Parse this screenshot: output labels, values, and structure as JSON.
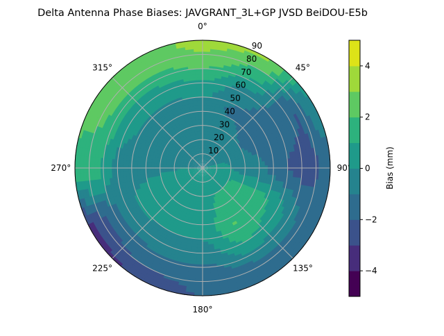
{
  "chart_data": {
    "type": "heatmap",
    "subtype": "polar-contour",
    "title": "Delta Antenna Phase Biases: JAVGRANT_3L+GP  JVSD BeiDOU-E5b",
    "theta_direction": "clockwise",
    "theta_zero": "top",
    "theta_tick_labels": [
      "0°",
      "45°",
      "90°",
      "135°",
      "180°",
      "225°",
      "270°",
      "315°"
    ],
    "theta_ticks": [
      0,
      45,
      90,
      135,
      180,
      225,
      270,
      315
    ],
    "r_ticks": [
      10,
      20,
      30,
      40,
      50,
      60,
      70,
      80,
      90
    ],
    "r_tick_labels": [
      "10",
      "20",
      "30",
      "40",
      "50",
      "60",
      "70",
      "80",
      "90"
    ],
    "r_range": [
      0,
      90
    ],
    "grid": true,
    "colorbar": {
      "label": "Bias (mm)",
      "levels": [
        -5,
        -4,
        -3,
        -2,
        -1,
        0,
        1,
        2,
        3,
        4,
        5
      ],
      "ticks": [
        -4,
        -2,
        0,
        2,
        4
      ],
      "tick_labels": [
        "−4",
        "−2",
        "0",
        "2",
        "4"
      ],
      "colors": [
        "#440154",
        "#472d7b",
        "#3b528b",
        "#2e6c8e",
        "#25838e",
        "#1f9a8a",
        "#2db27d",
        "#5ec962",
        "#9fd93a",
        "#dde318"
      ]
    },
    "grid_azimuth": [
      0,
      30,
      60,
      90,
      120,
      150,
      180,
      210,
      240,
      270,
      300,
      330
    ],
    "grid_zenith": [
      0,
      15,
      30,
      45,
      60,
      75,
      90
    ],
    "values": [
      [
        0,
        -0.3,
        -0.5,
        -0.3,
        0.8,
        2.5,
        3.5
      ],
      [
        0,
        -0.3,
        -0.6,
        -1.2,
        -0.5,
        1.5,
        3.2
      ],
      [
        0,
        -0.3,
        -1.0,
        -1.5,
        -1.5,
        -2.0,
        0
      ],
      [
        0,
        0.3,
        -0.5,
        -1.0,
        -2.0,
        -2.5,
        -1.5
      ],
      [
        0.2,
        0.8,
        1.5,
        1.5,
        0.5,
        -1.0,
        -1.5
      ],
      [
        0.3,
        0.8,
        1.5,
        2.0,
        1.0,
        -1.0,
        -2.0
      ],
      [
        0.3,
        0.5,
        0.5,
        0.3,
        -0.5,
        -1.5,
        -2.0
      ],
      [
        0.2,
        0.5,
        0.5,
        0.2,
        -0.5,
        -1.5,
        -3.0
      ],
      [
        0.3,
        0.8,
        1.0,
        0.5,
        -0.5,
        -2.0,
        -3.5
      ],
      [
        0,
        0,
        -0.2,
        -0.5,
        -0.5,
        1.5,
        1.5
      ],
      [
        0,
        -0.3,
        -0.5,
        -0.5,
        0.5,
        2.0,
        2.5
      ],
      [
        0,
        -0.3,
        -0.5,
        -0.5,
        0.5,
        2.0,
        2.5
      ]
    ]
  }
}
